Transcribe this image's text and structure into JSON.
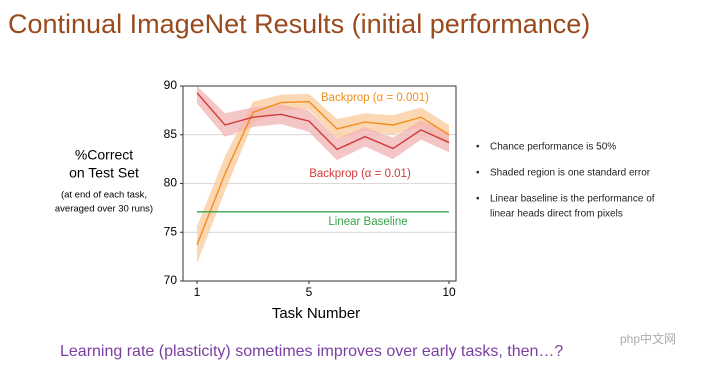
{
  "title": "Continual ImageNet Results (initial performance)",
  "chart_data": {
    "type": "line",
    "ylabel": [
      "%Correct",
      "on Test Set"
    ],
    "ylabel_note": [
      "(at end of each task,",
      "averaged over 30 runs)"
    ],
    "xlabel": "Task Number",
    "x": [
      1,
      2,
      3,
      4,
      5,
      6,
      7,
      8,
      9,
      10
    ],
    "xlim": [
      0.5,
      10.25
    ],
    "xticks": [
      1,
      5,
      10
    ],
    "ylim": [
      70,
      90
    ],
    "yticks": [
      70,
      75,
      80,
      85,
      90
    ],
    "grid": true,
    "series": [
      {
        "name": "Backprop (α = 0.001)",
        "color": "#f28e1c",
        "band_color": "#fbc99a",
        "values": [
          73.7,
          81,
          87.3,
          88.3,
          88.4,
          85.6,
          86.3,
          86.0,
          86.8,
          85.0
        ],
        "lower": [
          71.8,
          79.2,
          86.2,
          87.5,
          87.6,
          84.6,
          85.4,
          85.0,
          85.8,
          84.0
        ],
        "upper": [
          75.6,
          82.8,
          88.4,
          89.1,
          89.2,
          86.6,
          87.2,
          87.0,
          87.8,
          86.0
        ]
      },
      {
        "name": "Backprop (α = 0.01)",
        "color": "#d03a3a",
        "band_color": "#f2b3b3",
        "values": [
          89.3,
          86.0,
          86.8,
          87.1,
          86.4,
          83.5,
          84.8,
          83.6,
          85.5,
          84.2
        ],
        "lower": [
          88.2,
          84.8,
          85.8,
          86.1,
          85.3,
          82.4,
          83.8,
          82.5,
          84.5,
          83.2
        ],
        "upper": [
          90.0,
          87.2,
          87.8,
          88.1,
          87.5,
          84.6,
          85.8,
          84.7,
          86.5,
          85.2
        ]
      },
      {
        "name": "Linear Baseline",
        "color": "#3aa34a",
        "values": [
          77.1,
          77.1,
          77.1,
          77.1,
          77.1,
          77.1,
          77.1,
          77.1,
          77.1,
          77.1
        ]
      }
    ]
  },
  "bullets": [
    "Chance performance is 50%",
    "Shaded region is one standard error",
    [
      "Linear baseline is the performance of",
      "linear heads direct from pixels"
    ]
  ],
  "footer": "Learning rate (plasticity) sometimes improves over early tasks, then…?",
  "watermark": "php中文网"
}
